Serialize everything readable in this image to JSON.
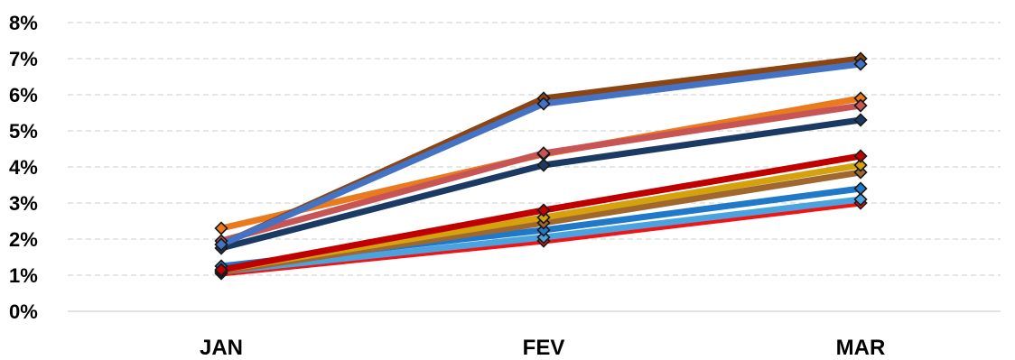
{
  "chart_data": {
    "type": "line",
    "title": "",
    "xlabel": "",
    "ylabel": "",
    "categories": [
      "JAN",
      "FEV",
      "MAR"
    ],
    "ylim": [
      0,
      8
    ],
    "y_ticks": [
      "0%",
      "1%",
      "2%",
      "3%",
      "4%",
      "5%",
      "6%",
      "7%",
      "8%"
    ],
    "y_unit": "%",
    "grid": "horizontal dashed",
    "legend": "none",
    "marker": "diamond",
    "series": [
      {
        "color": "#F01414",
        "values": [
          1.05,
          1.95,
          3.0
        ]
      },
      {
        "color": "#4AA3DF",
        "values": [
          1.1,
          2.05,
          3.1
        ]
      },
      {
        "color": "#1F78C8",
        "values": [
          1.25,
          2.25,
          3.4
        ]
      },
      {
        "color": "#A0682E",
        "values": [
          1.1,
          2.45,
          3.85
        ]
      },
      {
        "color": "#D4A20C",
        "values": [
          1.15,
          2.6,
          4.05
        ]
      },
      {
        "color": "#C00000",
        "values": [
          1.15,
          2.8,
          4.3
        ]
      },
      {
        "color": "#1B3A63",
        "values": [
          1.75,
          4.05,
          5.3
        ]
      },
      {
        "color": "#E97A1E",
        "values": [
          2.3,
          4.35,
          5.9
        ]
      },
      {
        "color": "#C85555",
        "values": [
          1.95,
          4.38,
          5.7
        ]
      },
      {
        "color": "#8B4513",
        "values": [
          1.85,
          5.9,
          7.0
        ]
      },
      {
        "color": "#4472C4",
        "values": [
          1.85,
          5.75,
          6.85
        ]
      }
    ]
  }
}
